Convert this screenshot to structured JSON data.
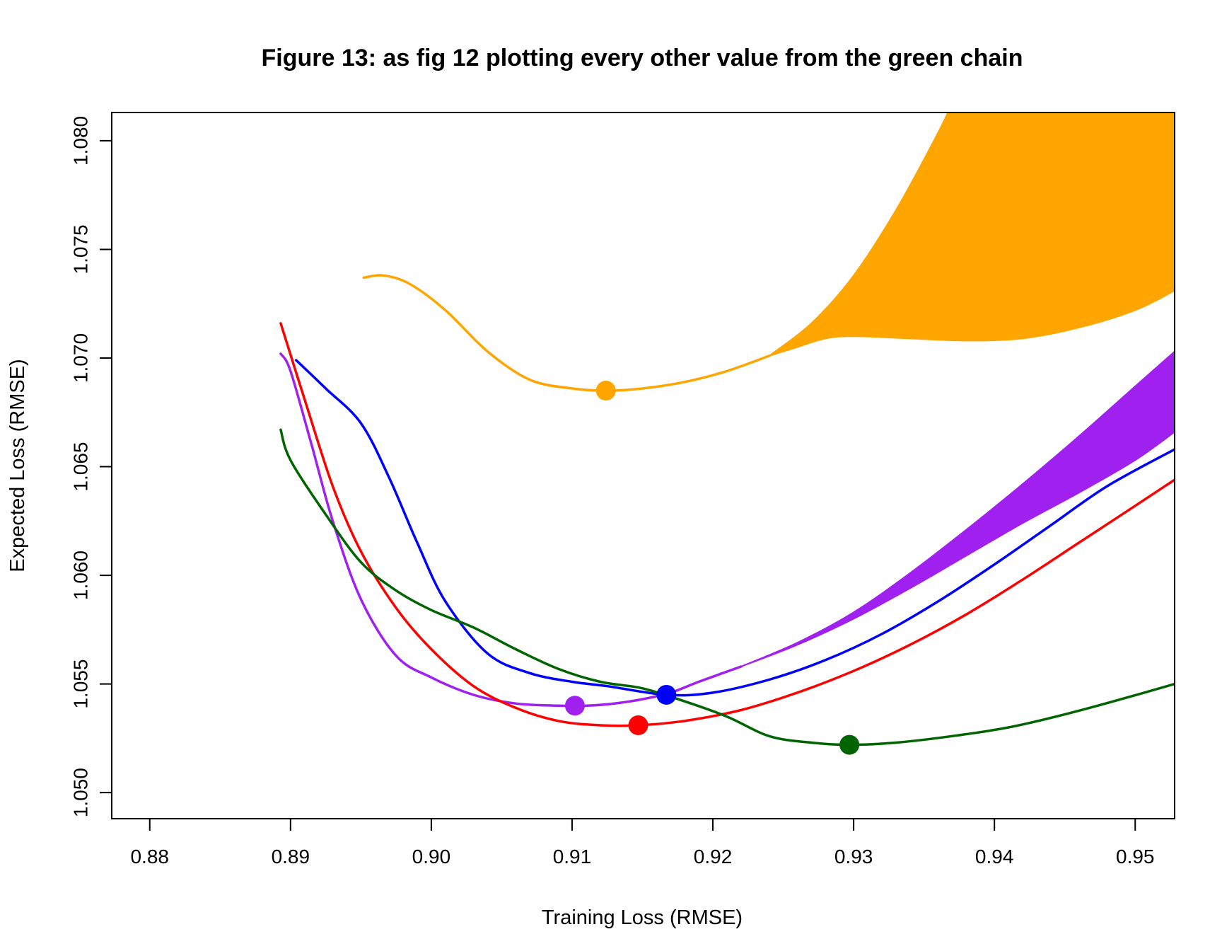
{
  "chart_data": {
    "type": "line",
    "title": "Figure 13: as fig 12 plotting every other value from the green chain",
    "xlabel": "Training Loss (RMSE)",
    "ylabel": "Expected Loss (RMSE)",
    "xlim": [
      0.8773,
      0.9528
    ],
    "ylim": [
      1.0488,
      1.0813
    ],
    "x_ticks": [
      0.88,
      0.89,
      0.9,
      0.91,
      0.92,
      0.93,
      0.94,
      0.95
    ],
    "x_tick_labels": [
      "0.88",
      "0.89",
      "0.90",
      "0.91",
      "0.92",
      "0.93",
      "0.94",
      "0.95"
    ],
    "y_ticks": [
      1.05,
      1.055,
      1.06,
      1.065,
      1.07,
      1.075,
      1.08
    ],
    "y_tick_labels": [
      "1.050",
      "1.055",
      "1.060",
      "1.065",
      "1.070",
      "1.075",
      "1.080"
    ],
    "series": [
      {
        "name": "orange",
        "color": "#FFA500",
        "points": [
          [
            0.8952,
            1.0737
          ],
          [
            0.8966,
            1.0738
          ],
          [
            0.8985,
            1.0734
          ],
          [
            0.901,
            1.0722
          ],
          [
            0.904,
            1.0703
          ],
          [
            0.907,
            1.069
          ],
          [
            0.91,
            1.0686
          ],
          [
            0.9124,
            1.0685
          ],
          [
            0.915,
            1.0686
          ],
          [
            0.918,
            1.0689
          ],
          [
            0.921,
            1.0694
          ],
          [
            0.924,
            1.0701
          ]
        ],
        "upper": [
          [
            0.924,
            1.0701
          ],
          [
            0.927,
            1.0716
          ],
          [
            0.93,
            1.0738
          ],
          [
            0.933,
            1.0768
          ],
          [
            0.9357,
            1.08
          ],
          [
            0.9367,
            1.0813
          ],
          [
            0.9528,
            1.0813
          ]
        ],
        "lower": [
          [
            0.924,
            1.0701
          ],
          [
            0.926,
            1.0705
          ],
          [
            0.928,
            1.0709
          ],
          [
            0.93,
            1.071
          ],
          [
            0.934,
            1.0709
          ],
          [
            0.938,
            1.0708
          ],
          [
            0.942,
            1.0709
          ],
          [
            0.946,
            1.0714
          ],
          [
            0.95,
            1.0722
          ],
          [
            0.9528,
            1.0731
          ]
        ],
        "marker": [
          0.9124,
          1.0685
        ]
      },
      {
        "name": "purple",
        "color": "#A020F0",
        "points": [
          [
            0.8893,
            1.0702
          ],
          [
            0.89,
            1.0694
          ],
          [
            0.8915,
            1.066
          ],
          [
            0.893,
            1.0625
          ],
          [
            0.895,
            1.0589
          ],
          [
            0.8975,
            1.0563
          ],
          [
            0.9,
            1.0553
          ],
          [
            0.903,
            1.0545
          ],
          [
            0.906,
            1.0541
          ],
          [
            0.909,
            1.054
          ],
          [
            0.911,
            1.054
          ],
          [
            0.913,
            1.0541
          ],
          [
            0.915,
            1.0543
          ],
          [
            0.917,
            1.0546
          ],
          [
            0.919,
            1.0551
          ],
          [
            0.922,
            1.0558
          ]
        ],
        "upper": [
          [
            0.922,
            1.0558
          ],
          [
            0.926,
            1.0569
          ],
          [
            0.93,
            1.0583
          ],
          [
            0.934,
            1.0601
          ],
          [
            0.938,
            1.0621
          ],
          [
            0.942,
            1.0642
          ],
          [
            0.946,
            1.0664
          ],
          [
            0.95,
            1.0687
          ],
          [
            0.9528,
            1.0703
          ]
        ],
        "lower": [
          [
            0.922,
            1.0558
          ],
          [
            0.926,
            1.0568
          ],
          [
            0.93,
            1.058
          ],
          [
            0.934,
            1.0594
          ],
          [
            0.938,
            1.0609
          ],
          [
            0.942,
            1.0624
          ],
          [
            0.946,
            1.0638
          ],
          [
            0.95,
            1.0653
          ],
          [
            0.9528,
            1.0666
          ]
        ],
        "marker": [
          0.9102,
          1.054
        ]
      },
      {
        "name": "blue",
        "color": "#0000FF",
        "points": [
          [
            0.8904,
            1.0699
          ],
          [
            0.8925,
            1.0686
          ],
          [
            0.895,
            1.067
          ],
          [
            0.897,
            1.0645
          ],
          [
            0.899,
            1.0615
          ],
          [
            0.901,
            1.0588
          ],
          [
            0.904,
            1.0564
          ],
          [
            0.907,
            1.0555
          ],
          [
            0.91,
            1.0551
          ],
          [
            0.9125,
            1.0549
          ],
          [
            0.9167,
            1.0545
          ],
          [
            0.92,
            1.0546
          ],
          [
            0.924,
            1.0552
          ],
          [
            0.928,
            1.0561
          ],
          [
            0.932,
            1.0573
          ],
          [
            0.936,
            1.0588
          ],
          [
            0.94,
            1.0605
          ],
          [
            0.944,
            1.0623
          ],
          [
            0.948,
            1.0641
          ],
          [
            0.9528,
            1.0658
          ]
        ],
        "marker": [
          0.9167,
          1.0545
        ]
      },
      {
        "name": "red",
        "color": "#FF0000",
        "points": [
          [
            0.8893,
            1.0716
          ],
          [
            0.891,
            1.0681
          ],
          [
            0.893,
            1.0641
          ],
          [
            0.895,
            1.0611
          ],
          [
            0.8975,
            1.0585
          ],
          [
            0.9,
            1.0566
          ],
          [
            0.903,
            1.0549
          ],
          [
            0.906,
            1.0539
          ],
          [
            0.909,
            1.0533
          ],
          [
            0.912,
            1.0531
          ],
          [
            0.9147,
            1.0531
          ],
          [
            0.918,
            1.0533
          ],
          [
            0.922,
            1.0538
          ],
          [
            0.926,
            1.0546
          ],
          [
            0.93,
            1.0556
          ],
          [
            0.934,
            1.0568
          ],
          [
            0.938,
            1.0582
          ],
          [
            0.942,
            1.0598
          ],
          [
            0.946,
            1.0615
          ],
          [
            0.95,
            1.0632
          ],
          [
            0.9528,
            1.0644
          ]
        ],
        "marker": [
          0.9147,
          1.0531
        ]
      },
      {
        "name": "darkgreen",
        "color": "#006400",
        "points": [
          [
            0.8893,
            1.0667
          ],
          [
            0.89,
            1.0653
          ],
          [
            0.8925,
            1.0628
          ],
          [
            0.895,
            1.0606
          ],
          [
            0.8975,
            1.0593
          ],
          [
            0.9,
            1.0584
          ],
          [
            0.903,
            1.0576
          ],
          [
            0.906,
            1.0566
          ],
          [
            0.909,
            1.0557
          ],
          [
            0.912,
            1.0551
          ],
          [
            0.915,
            1.0548
          ],
          [
            0.918,
            1.0542
          ],
          [
            0.921,
            1.0535
          ],
          [
            0.924,
            1.0526
          ],
          [
            0.927,
            1.0523
          ],
          [
            0.9297,
            1.0522
          ],
          [
            0.933,
            1.0523
          ],
          [
            0.937,
            1.0526
          ],
          [
            0.941,
            1.053
          ],
          [
            0.945,
            1.0536
          ],
          [
            0.949,
            1.0543
          ],
          [
            0.9528,
            1.055
          ]
        ],
        "marker": [
          0.9297,
          1.0522
        ]
      }
    ]
  }
}
